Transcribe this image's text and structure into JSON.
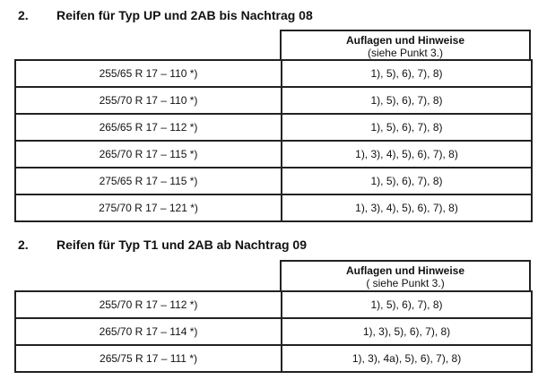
{
  "sections": [
    {
      "number": "2.",
      "title": "Reifen für Typ UP und 2AB bis Nachtrag 08",
      "header_title": "Auflagen und Hinweise",
      "header_sub": "(siehe Punkt 3.)",
      "rows": [
        {
          "tire": "255/65 R 17 – 110 *)",
          "notes": "1), 5), 6), 7), 8)"
        },
        {
          "tire": "255/70 R 17 – 110 *)",
          "notes": "1), 5), 6), 7), 8)"
        },
        {
          "tire": "265/65 R 17 – 112 *)",
          "notes": "1), 5), 6), 7), 8)"
        },
        {
          "tire": "265/70 R 17 – 115 *)",
          "notes": "1), 3), 4), 5), 6), 7), 8)"
        },
        {
          "tire": "275/65 R 17 – 115 *)",
          "notes": "1), 5), 6), 7), 8)"
        },
        {
          "tire": "275/70 R 17 – 121 *)",
          "notes": "1), 3), 4), 5), 6), 7), 8)"
        }
      ]
    },
    {
      "number": "2.",
      "title": "Reifen für Typ T1 und 2AB ab Nachtrag 09",
      "header_title": "Auflagen und Hinweise",
      "header_sub": "( siehe Punkt 3.)",
      "rows": [
        {
          "tire": "255/70 R 17 – 112 *)",
          "notes": "1), 5), 6), 7), 8)"
        },
        {
          "tire": "265/70 R 17 – 114 *)",
          "notes": "1), 3), 5), 6), 7), 8)"
        },
        {
          "tire": "265/75 R 17 – 111 *)",
          "notes": "1), 3), 4a), 5), 6), 7), 8)"
        }
      ]
    }
  ]
}
